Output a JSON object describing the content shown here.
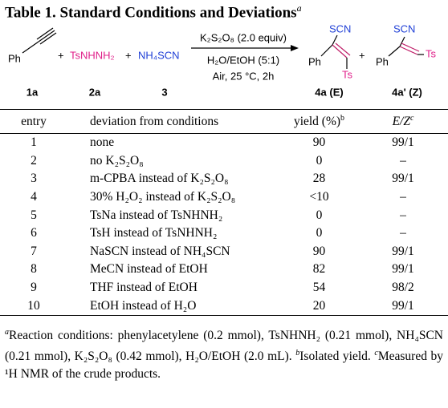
{
  "title": {
    "label": "Table 1.",
    "text": "Standard Conditions and Deviations",
    "note": "a"
  },
  "scheme": {
    "reactant_1": "Ph",
    "reagent_2": "TsNHNH₂",
    "reagent_3": "NH₄SCN",
    "plus_signs": [
      "+",
      "+",
      "+"
    ],
    "conditions_above": "K₂S₂O₈ (2.0 equiv)",
    "conditions_below": [
      "H₂O/EtOH (5:1)",
      "Air, 25 °C, 2h"
    ],
    "product_E": {
      "ph": "Ph",
      "scn": "SCN",
      "ts": "Ts"
    },
    "product_Z": {
      "ph": "Ph",
      "scn": "SCN",
      "ts": "Ts"
    },
    "labels": [
      "1a",
      "2a",
      "3",
      "4a (E)",
      "4a' (Z)"
    ]
  },
  "table": {
    "headers": [
      {
        "text": "entry"
      },
      {
        "text": "deviation from conditions"
      },
      {
        "text": "yield (%)",
        "note": "b"
      },
      {
        "text": "E/Z",
        "note": "c"
      }
    ],
    "rows": [
      [
        1,
        "none",
        90,
        "99/1"
      ],
      [
        2,
        "no K₂S₂O₈",
        0,
        "–"
      ],
      [
        3,
        "m-CPBA instead of K₂S₂O₈",
        28,
        "99/1"
      ],
      [
        4,
        "30% H₂O₂ instead of K₂S₂O₈",
        "<10",
        "–"
      ],
      [
        5,
        "TsNa instead of TsNHNH₂",
        0,
        "–"
      ],
      [
        6,
        "TsH instead of TsNHNH₂",
        0,
        "–"
      ],
      [
        7,
        "NaSCN instead of NH₄SCN",
        90,
        "99/1"
      ],
      [
        8,
        "MeCN instead of EtOH",
        82,
        "99/1"
      ],
      [
        9,
        "THF instead of EtOH",
        54,
        "98/2"
      ],
      [
        10,
        "EtOH instead of H₂O",
        20,
        "99/1"
      ]
    ]
  },
  "footnotes": [
    {
      "mark": "a",
      "text": "Reaction conditions: phenylacetylene (0.2 mmol), TsNHNH₂ (0.21 mmol), NH₄SCN (0.21 mmol), K₂S₂O₈ (0.42 mmol), H₂O/EtOH (2.0 mL)."
    },
    {
      "mark": "b",
      "text": "Isolated yield."
    },
    {
      "mark": "c",
      "text": "Measured by ¹H NMR of the crude products."
    }
  ]
}
